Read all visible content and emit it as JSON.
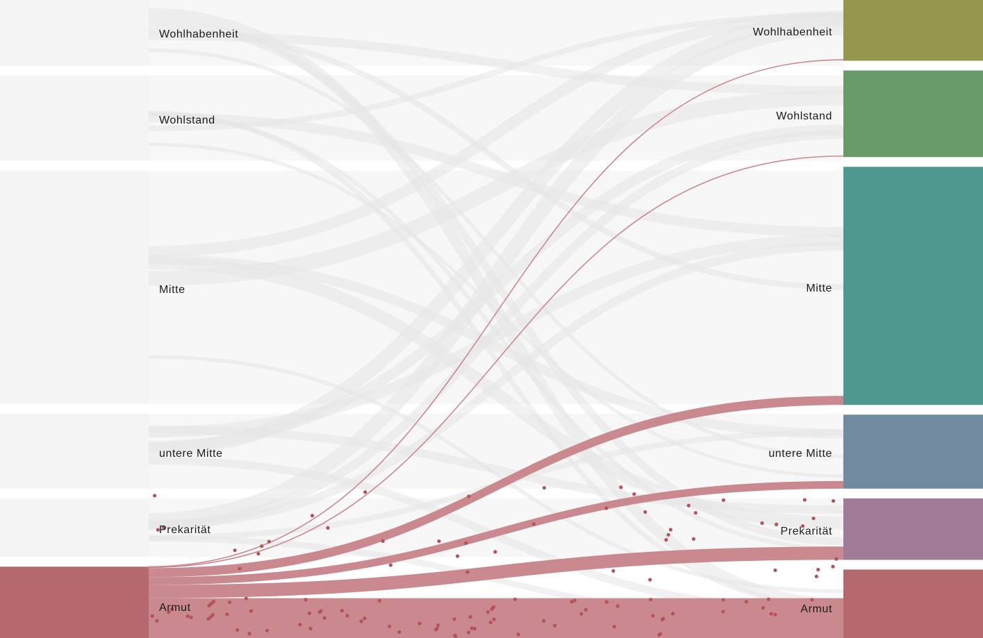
{
  "chart_data": {
    "type": "sankey",
    "title": "",
    "highlight_source": "Armut",
    "left_nodes": [
      {
        "label": "Wohlhabenheit",
        "value": 94
      },
      {
        "label": "Wohlstand",
        "value": 122
      },
      {
        "label": "Mitte",
        "value": 334
      },
      {
        "label": "untere Mitte",
        "value": 107
      },
      {
        "label": "Prekarität",
        "value": 84
      },
      {
        "label": "Armut",
        "value": 102
      }
    ],
    "right_nodes": [
      {
        "label": "Wohlhabenheit",
        "value": 87,
        "color": "#95964d"
      },
      {
        "label": "Wohlstand",
        "value": 124,
        "color": "#689b69"
      },
      {
        "label": "Mitte",
        "value": 341,
        "color": "#4e988f"
      },
      {
        "label": "untere Mitte",
        "value": 106,
        "color": "#728aa0"
      },
      {
        "label": "Prekarität",
        "value": 88,
        "color": "#a07b96"
      },
      {
        "label": "Armut",
        "value": 98,
        "color": "#b4696e"
      }
    ],
    "highlight_flows": [
      {
        "from": "Armut",
        "to": "Wohlhabenheit",
        "value": 1
      },
      {
        "from": "Armut",
        "to": "Wohlstand",
        "value": 1
      },
      {
        "from": "Armut",
        "to": "Mitte",
        "value": 13
      },
      {
        "from": "Armut",
        "to": "untere Mitte",
        "value": 11
      },
      {
        "from": "Armut",
        "to": "Prekarität",
        "value": 19
      },
      {
        "from": "Armut",
        "to": "Armut",
        "value": 57
      }
    ],
    "colors": {
      "highlight_node": "#b4696e",
      "highlight_flow": "#c9898f",
      "dot": "#b3525c",
      "inactive_node": "#f4f4f4",
      "inactive_flow": "#e6e6e6"
    }
  }
}
